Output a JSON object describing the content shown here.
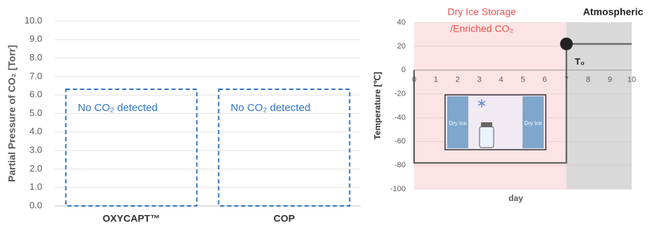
{
  "chart_data": [
    {
      "type": "bar",
      "ylabel": "Partial Pressure of CO₂ [Torr]",
      "categories": [
        "OXYCAPT™",
        "COP"
      ],
      "values": [
        null,
        null
      ],
      "ylim": [
        0,
        10
      ],
      "yticks": [
        {
          "value": 0,
          "label": "0.0"
        },
        {
          "value": 1,
          "label": "1.0"
        },
        {
          "value": 2,
          "label": "2.0"
        },
        {
          "value": 3,
          "label": "3.0"
        },
        {
          "value": 4,
          "label": "4.0"
        },
        {
          "value": 5,
          "label": "5.0"
        },
        {
          "value": 6,
          "label": "6.0"
        },
        {
          "value": 7,
          "label": "7.0"
        },
        {
          "value": 8,
          "label": "8.0"
        },
        {
          "value": 9,
          "label": "9.0"
        },
        {
          "value": 10,
          "label": "10.0"
        }
      ],
      "grid": true,
      "annotations": [
        "No CO₂ detected",
        "No CO₂ detected"
      ],
      "annotation_color": "#2e75c6"
    },
    {
      "type": "line",
      "xlabel": "day",
      "ylabel": "Temperature [℃]",
      "x": [
        0,
        0,
        7,
        7,
        10
      ],
      "series": [
        {
          "color": "#555555",
          "values": [
            0,
            -78,
            -78,
            22,
            22
          ]
        }
      ],
      "xlim": [
        0,
        10
      ],
      "xticks": [
        0,
        1,
        2,
        3,
        4,
        5,
        6,
        7,
        8,
        9,
        10
      ],
      "ylim": [
        -100,
        40
      ],
      "yticks": [
        40,
        20,
        0,
        -20,
        -40,
        -60,
        -80,
        -100
      ],
      "grid": true,
      "regions": [
        {
          "label": [
            "Dry Ice Storage",
            "/Enriched CO₂"
          ],
          "x": [
            0,
            7
          ],
          "color": "#fde4e4",
          "label_color": "#e8504f"
        },
        {
          "label": [
            "Atmospheric"
          ],
          "x": [
            7,
            10
          ],
          "color": "#d9d9d9",
          "label_color": "#222222"
        }
      ],
      "markers": [
        {
          "label": "T₀",
          "x": 7,
          "y": 22,
          "color": "#222222"
        }
      ],
      "inset_labels": [
        "Dry Ice",
        "Dry Ice"
      ]
    }
  ]
}
